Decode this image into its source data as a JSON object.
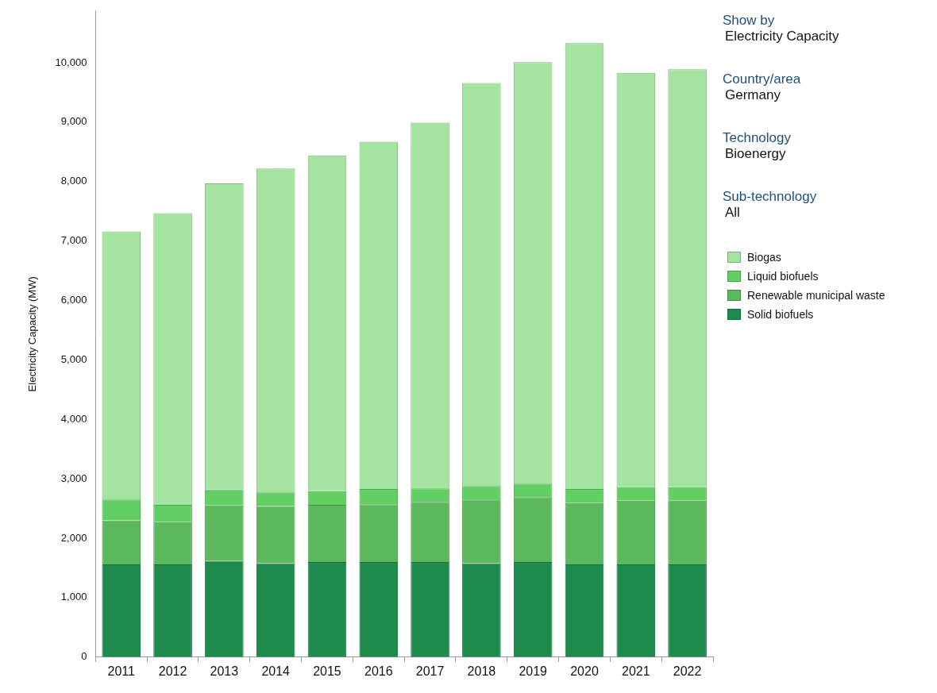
{
  "chart_data": {
    "type": "bar",
    "stacked": true,
    "y_label": "Electricity Capacity (MW)",
    "categories": [
      "2011",
      "2012",
      "2013",
      "2014",
      "2015",
      "2016",
      "2017",
      "2018",
      "2019",
      "2020",
      "2021",
      "2022"
    ],
    "series": [
      {
        "name": "Biogas",
        "color": "#a5e3a0",
        "values": [
          4510,
          4910,
          5150,
          5450,
          5650,
          5840,
          6150,
          6780,
          7090,
          7500,
          6970,
          7030
        ]
      },
      {
        "name": "Liquid biofuels",
        "color": "#62cf62",
        "values": [
          350,
          290,
          270,
          230,
          230,
          260,
          230,
          230,
          230,
          240,
          230,
          230
        ]
      },
      {
        "name": "Renewable municipal waste",
        "color": "#5cb85c",
        "values": [
          740,
          710,
          930,
          960,
          960,
          970,
          1010,
          1070,
          1090,
          1030,
          1070,
          1070
        ]
      },
      {
        "name": "Solid biofuels",
        "color": "#1e8a4c",
        "values": [
          1560,
          1560,
          1620,
          1580,
          1600,
          1600,
          1600,
          1580,
          1600,
          1560,
          1560,
          1560
        ]
      }
    ],
    "ylim": [
      0,
      10870
    ],
    "yticks": [
      0,
      {
        "value": 1000,
        "label": "1,000"
      },
      {
        "value": 2000,
        "label": "2,000"
      },
      {
        "value": 3000,
        "label": "3,000"
      },
      {
        "value": 4000,
        "label": "4,000"
      },
      {
        "value": 5000,
        "label": "5,000"
      },
      {
        "value": 6000,
        "label": "6,000"
      },
      {
        "value": 7000,
        "label": "7,000"
      },
      {
        "value": 8000,
        "label": "8,000"
      },
      {
        "value": 9000,
        "label": "9,000"
      },
      {
        "value": 10000,
        "label": "10,000"
      }
    ],
    "grid": false,
    "legend": "right",
    "annotations": [
      {
        "heading": "Show by",
        "text": "Electricity Capacity"
      },
      {
        "heading": "Country/area",
        "text": "Germany"
      },
      {
        "heading": "Technology",
        "text": "Bioenergy"
      },
      {
        "heading": "Sub-technology",
        "text": "All"
      }
    ]
  }
}
